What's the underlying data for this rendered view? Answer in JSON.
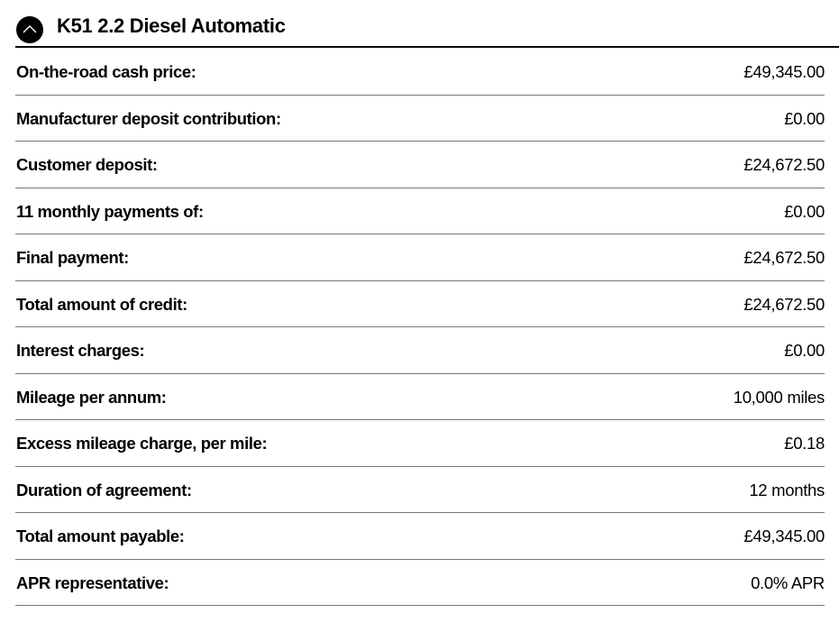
{
  "header": {
    "title": "K51 2.2 Diesel Automatic",
    "toggle_icon": "chevron-up-icon"
  },
  "rows": [
    {
      "label": "On-the-road cash price:",
      "value": "£49,345.00"
    },
    {
      "label": "Manufacturer deposit contribution:",
      "value": "£0.00"
    },
    {
      "label": "Customer deposit:",
      "value": "£24,672.50"
    },
    {
      "label": "11 monthly payments of:",
      "value": "£0.00"
    },
    {
      "label": "Final payment:",
      "value": "£24,672.50"
    },
    {
      "label": "Total amount of credit:",
      "value": "£24,672.50"
    },
    {
      "label": "Interest charges:",
      "value": "£0.00"
    },
    {
      "label": "Mileage per annum:",
      "value": "10,000 miles"
    },
    {
      "label": "Excess mileage charge, per mile:",
      "value": "£0.18"
    },
    {
      "label": "Duration of agreement:",
      "value": "12 months"
    },
    {
      "label": "Total amount payable:",
      "value": "£49,345.00"
    },
    {
      "label": "APR representative:",
      "value": "0.0% APR"
    }
  ]
}
